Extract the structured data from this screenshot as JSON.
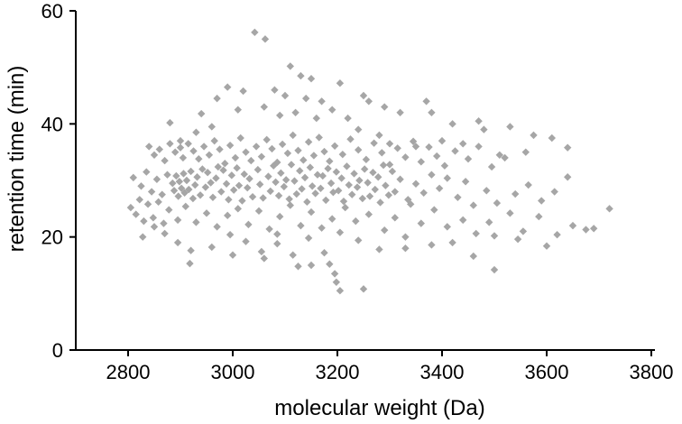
{
  "chart_data": {
    "type": "scatter",
    "title": "",
    "xlabel": "molecular weight (Da)",
    "ylabel": "retention time (min)",
    "xlim": [
      2700,
      3800
    ],
    "ylim": [
      0,
      60
    ],
    "x_ticks": [
      2800,
      3000,
      3200,
      3400,
      3600,
      3800
    ],
    "y_ticks": [
      0,
      20,
      40,
      60
    ],
    "marker": "diamond",
    "marker_color": "#a6a6a6",
    "grid": false,
    "legend": "none",
    "series": [
      {
        "points": [
          [
            3042,
            56.2
          ],
          [
            3062,
            55.0
          ],
          [
            3110,
            50.2
          ],
          [
            3130,
            48.5
          ],
          [
            3150,
            48.0
          ],
          [
            3205,
            47.2
          ],
          [
            3250,
            45.0
          ],
          [
            3290,
            43.0
          ],
          [
            2880,
            40.2
          ],
          [
            2940,
            41.8
          ],
          [
            2970,
            44.5
          ],
          [
            2990,
            46.5
          ],
          [
            3020,
            45.8
          ],
          [
            3080,
            46.0
          ],
          [
            3100,
            45.0
          ],
          [
            3140,
            44.5
          ],
          [
            3170,
            44.0
          ],
          [
            3260,
            44.0
          ],
          [
            3320,
            42.0
          ],
          [
            3370,
            44.0
          ],
          [
            3380,
            42.0
          ],
          [
            3420,
            40.0
          ],
          [
            3470,
            40.5
          ],
          [
            3480,
            39.0
          ],
          [
            3530,
            39.5
          ],
          [
            3575,
            38.0
          ],
          [
            3610,
            37.5
          ],
          [
            3640,
            35.8
          ],
          [
            3560,
            35.0
          ],
          [
            3510,
            34.5
          ],
          [
            3440,
            36.5
          ],
          [
            3400,
            37.0
          ],
          [
            3350,
            36.0
          ],
          [
            3300,
            36.5
          ],
          [
            3280,
            38.0
          ],
          [
            3240,
            39.0
          ],
          [
            3220,
            41.0
          ],
          [
            3190,
            42.5
          ],
          [
            3160,
            41.0
          ],
          [
            3120,
            42.0
          ],
          [
            3090,
            41.5
          ],
          [
            3060,
            43.0
          ],
          [
            3010,
            42.5
          ],
          [
            2960,
            39.5
          ],
          [
            2930,
            38.5
          ],
          [
            2900,
            37.0
          ],
          [
            2840,
            36.0
          ],
          [
            2850,
            34.5
          ],
          [
            2860,
            35.5
          ],
          [
            2870,
            33.5
          ],
          [
            2880,
            36.5
          ],
          [
            2890,
            35.0
          ],
          [
            2900,
            35.8
          ],
          [
            2905,
            34.0
          ],
          [
            2915,
            36.5
          ],
          [
            2925,
            35.2
          ],
          [
            2935,
            33.8
          ],
          [
            2945,
            36.0
          ],
          [
            2955,
            34.5
          ],
          [
            2965,
            37.0
          ],
          [
            2975,
            35.5
          ],
          [
            2985,
            33.0
          ],
          [
            2995,
            36.2
          ],
          [
            3005,
            34.0
          ],
          [
            3015,
            37.5
          ],
          [
            3025,
            35.0
          ],
          [
            3035,
            33.5
          ],
          [
            3045,
            36.0
          ],
          [
            3055,
            34.2
          ],
          [
            3065,
            37.2
          ],
          [
            3075,
            35.6
          ],
          [
            3085,
            33.2
          ],
          [
            3095,
            36.4
          ],
          [
            3105,
            34.8
          ],
          [
            3115,
            38.0
          ],
          [
            3125,
            35.3
          ],
          [
            3135,
            33.6
          ],
          [
            3145,
            36.8
          ],
          [
            3155,
            34.4
          ],
          [
            3165,
            37.6
          ],
          [
            3175,
            35.1
          ],
          [
            3185,
            33.4
          ],
          [
            3195,
            36.1
          ],
          [
            3210,
            34.6
          ],
          [
            3225,
            37.3
          ],
          [
            3240,
            35.4
          ],
          [
            3255,
            33.7
          ],
          [
            3270,
            36.6
          ],
          [
            3285,
            34.9
          ],
          [
            3300,
            32.8
          ],
          [
            3315,
            35.7
          ],
          [
            3330,
            34.1
          ],
          [
            3345,
            36.9
          ],
          [
            3360,
            33.3
          ],
          [
            3375,
            35.9
          ],
          [
            3390,
            34.3
          ],
          [
            3405,
            32.6
          ],
          [
            3425,
            35.2
          ],
          [
            3450,
            33.8
          ],
          [
            3470,
            36.0
          ],
          [
            3495,
            32.4
          ],
          [
            3520,
            34.0
          ],
          [
            2810,
            30.5
          ],
          [
            2825,
            29.0
          ],
          [
            2835,
            31.5
          ],
          [
            2845,
            28.0
          ],
          [
            2855,
            30.2
          ],
          [
            2865,
            27.5
          ],
          [
            2875,
            31.0
          ],
          [
            2885,
            29.5
          ],
          [
            2888,
            28.2
          ],
          [
            2892,
            30.8
          ],
          [
            2896,
            27.2
          ],
          [
            2898,
            29.8
          ],
          [
            2902,
            28.6
          ],
          [
            2906,
            31.2
          ],
          [
            2908,
            27.8
          ],
          [
            2912,
            30.0
          ],
          [
            2916,
            28.4
          ],
          [
            2920,
            31.6
          ],
          [
            2924,
            26.8
          ],
          [
            2928,
            29.2
          ],
          [
            2932,
            30.6
          ],
          [
            2938,
            27.4
          ],
          [
            2942,
            32.0
          ],
          [
            2948,
            28.8
          ],
          [
            2952,
            31.4
          ],
          [
            2958,
            29.6
          ],
          [
            2962,
            27.0
          ],
          [
            2968,
            30.4
          ],
          [
            2972,
            32.4
          ],
          [
            2978,
            28.0
          ],
          [
            2982,
            31.8
          ],
          [
            2988,
            29.4
          ],
          [
            2992,
            26.6
          ],
          [
            2998,
            30.9
          ],
          [
            3002,
            28.3
          ],
          [
            3008,
            32.2
          ],
          [
            3012,
            29.1
          ],
          [
            3018,
            26.4
          ],
          [
            3022,
            31.1
          ],
          [
            3028,
            28.7
          ],
          [
            3032,
            30.3
          ],
          [
            3038,
            27.1
          ],
          [
            3048,
            31.9
          ],
          [
            3052,
            29.3
          ],
          [
            3058,
            26.9
          ],
          [
            3068,
            30.7
          ],
          [
            3072,
            28.1
          ],
          [
            3078,
            32.6
          ],
          [
            3082,
            29.7
          ],
          [
            3088,
            27.3
          ],
          [
            3092,
            31.3
          ],
          [
            3098,
            28.9
          ],
          [
            3102,
            30.1
          ],
          [
            3108,
            26.7
          ],
          [
            3112,
            32.8
          ],
          [
            3118,
            29.9
          ],
          [
            3122,
            27.6
          ],
          [
            3128,
            31.7
          ],
          [
            3132,
            28.5
          ],
          [
            3138,
            30.5
          ],
          [
            3142,
            26.2
          ],
          [
            3148,
            32.3
          ],
          [
            3152,
            29.0
          ],
          [
            3158,
            27.7
          ],
          [
            3162,
            31.0
          ],
          [
            3168,
            28.6
          ],
          [
            3172,
            30.8
          ],
          [
            3178,
            26.5
          ],
          [
            3182,
            32.1
          ],
          [
            3188,
            29.5
          ],
          [
            3192,
            27.9
          ],
          [
            3198,
            31.5
          ],
          [
            3202,
            28.2
          ],
          [
            3208,
            30.4
          ],
          [
            3212,
            26.3
          ],
          [
            3218,
            32.5
          ],
          [
            3222,
            29.2
          ],
          [
            3228,
            27.5
          ],
          [
            3232,
            31.2
          ],
          [
            3238,
            28.8
          ],
          [
            3242,
            30.0
          ],
          [
            3248,
            26.8
          ],
          [
            3252,
            32.0
          ],
          [
            3258,
            29.6
          ],
          [
            3262,
            27.2
          ],
          [
            3268,
            31.4
          ],
          [
            3272,
            28.4
          ],
          [
            3278,
            30.6
          ],
          [
            3282,
            26.1
          ],
          [
            3288,
            32.7
          ],
          [
            3292,
            29.1
          ],
          [
            3298,
            27.4
          ],
          [
            3305,
            31.6
          ],
          [
            3310,
            28.0
          ],
          [
            3320,
            30.2
          ],
          [
            3335,
            26.6
          ],
          [
            3350,
            29.4
          ],
          [
            3365,
            27.8
          ],
          [
            3380,
            31.0
          ],
          [
            3395,
            28.6
          ],
          [
            3410,
            30.4
          ],
          [
            3430,
            27.0
          ],
          [
            3445,
            29.8
          ],
          [
            3460,
            25.6
          ],
          [
            3485,
            28.2
          ],
          [
            3505,
            26.0
          ],
          [
            3540,
            27.6
          ],
          [
            3565,
            29.2
          ],
          [
            3590,
            26.4
          ],
          [
            3615,
            28.0
          ],
          [
            3640,
            30.6
          ],
          [
            2805,
            25.2
          ],
          [
            2815,
            24.0
          ],
          [
            2822,
            26.6
          ],
          [
            2830,
            22.8
          ],
          [
            2838,
            25.8
          ],
          [
            2848,
            23.4
          ],
          [
            2858,
            26.2
          ],
          [
            2868,
            22.4
          ],
          [
            2878,
            24.8
          ],
          [
            2895,
            23.0
          ],
          [
            2910,
            25.4
          ],
          [
            2930,
            22.6
          ],
          [
            2950,
            24.2
          ],
          [
            2970,
            21.8
          ],
          [
            2990,
            23.8
          ],
          [
            3010,
            25.0
          ],
          [
            3030,
            22.2
          ],
          [
            3050,
            24.6
          ],
          [
            3070,
            21.4
          ],
          [
            3090,
            23.6
          ],
          [
            3110,
            25.6
          ],
          [
            3130,
            22.0
          ],
          [
            3150,
            24.4
          ],
          [
            3170,
            21.6
          ],
          [
            3190,
            23.2
          ],
          [
            3215,
            25.2
          ],
          [
            3235,
            22.8
          ],
          [
            3260,
            24.0
          ],
          [
            3290,
            21.2
          ],
          [
            3310,
            23.4
          ],
          [
            3340,
            25.8
          ],
          [
            3360,
            22.4
          ],
          [
            3385,
            24.8
          ],
          [
            3410,
            21.8
          ],
          [
            3440,
            23.0
          ],
          [
            3465,
            20.6
          ],
          [
            3490,
            22.6
          ],
          [
            3530,
            24.2
          ],
          [
            3555,
            21.0
          ],
          [
            3585,
            23.6
          ],
          [
            3620,
            20.4
          ],
          [
            3675,
            21.3
          ],
          [
            3690,
            21.5
          ],
          [
            3720,
            25.0
          ],
          [
            3650,
            22.0
          ],
          [
            3600,
            18.4
          ],
          [
            3545,
            19.6
          ],
          [
            3500,
            20.2
          ],
          [
            3460,
            16.6
          ],
          [
            3420,
            19.0
          ],
          [
            3380,
            18.6
          ],
          [
            3330,
            20.0
          ],
          [
            3280,
            17.8
          ],
          [
            3240,
            19.4
          ],
          [
            3205,
            20.8
          ],
          [
            3175,
            17.2
          ],
          [
            3145,
            19.8
          ],
          [
            3115,
            16.8
          ],
          [
            3085,
            18.8
          ],
          [
            3055,
            17.4
          ],
          [
            3025,
            19.2
          ],
          [
            2995,
            20.4
          ],
          [
            2960,
            18.2
          ],
          [
            2920,
            17.6
          ],
          [
            2895,
            19.0
          ],
          [
            2870,
            20.6
          ],
          [
            2850,
            21.8
          ],
          [
            2828,
            20.0
          ],
          [
            2918,
            15.3
          ],
          [
            3000,
            16.8
          ],
          [
            3060,
            16.2
          ],
          [
            3125,
            14.8
          ],
          [
            3150,
            15.0
          ],
          [
            3185,
            15.2
          ],
          [
            3195,
            13.5
          ],
          [
            3198,
            12.0
          ],
          [
            3205,
            10.5
          ],
          [
            3250,
            10.8
          ],
          [
            3500,
            14.2
          ],
          [
            3330,
            18.0
          ],
          [
            3085,
            20.5
          ]
        ]
      }
    ]
  }
}
